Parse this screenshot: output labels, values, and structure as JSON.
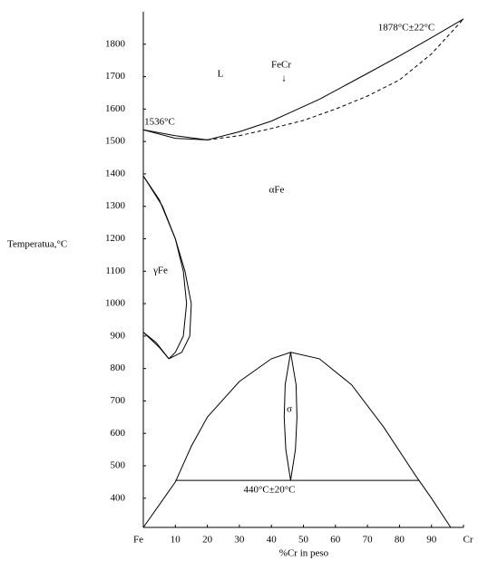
{
  "chart_data": {
    "type": "line",
    "x_label": "%Cr in peso",
    "y_label": "Temperatua,°C",
    "xlim": [
      0,
      100
    ],
    "ylim": [
      310,
      1900
    ],
    "xticks": [
      {
        "value": 0,
        "label": "Fe"
      },
      10,
      20,
      30,
      40,
      50,
      60,
      70,
      80,
      90,
      {
        "value": 100,
        "label": "Cr"
      }
    ],
    "yticks": [
      400,
      500,
      600,
      700,
      800,
      900,
      1000,
      1100,
      1200,
      1300,
      1400,
      1500,
      1600,
      1700,
      1800
    ],
    "color": "#000000",
    "series": [
      {
        "x": [
          0,
          10,
          20,
          30,
          40,
          55,
          70,
          80,
          90,
          100
        ],
        "values": [
          1536,
          1518,
          1505,
          1530,
          1563,
          1630,
          1710,
          1764,
          1820,
          1878
        ],
        "dashed": false
      },
      {
        "x": [
          0,
          10,
          20
        ],
        "values": [
          1536,
          1510,
          1505
        ],
        "dashed": false
      },
      {
        "x": [
          20,
          30,
          40,
          50,
          60,
          70,
          80,
          90,
          100
        ],
        "values": [
          1505,
          1518,
          1540,
          1565,
          1600,
          1640,
          1690,
          1770,
          1878
        ],
        "dashed": true
      },
      {
        "x": [
          0,
          5,
          10,
          13,
          15,
          14.5,
          12,
          8
        ],
        "values": [
          1394,
          1320,
          1200,
          1100,
          1000,
          900,
          850,
          830
        ],
        "dashed": false
      },
      {
        "x": [
          0,
          6,
          10,
          12.5,
          13.5,
          12.5,
          10,
          8
        ],
        "values": [
          1394,
          1300,
          1200,
          1100,
          1000,
          900,
          850,
          830
        ],
        "dashed": false
      },
      {
        "x": [
          0,
          4,
          8
        ],
        "values": [
          912,
          880,
          830
        ],
        "dashed": false
      },
      {
        "x": [
          0,
          5,
          8
        ],
        "values": [
          912,
          865,
          830
        ],
        "dashed": false
      },
      {
        "x": [
          0,
          5,
          10,
          15,
          20,
          30,
          40,
          46,
          55,
          65,
          75,
          85,
          90,
          96
        ],
        "values": [
          310,
          380,
          450,
          560,
          650,
          760,
          830,
          850,
          830,
          750,
          620,
          470,
          400,
          310
        ],
        "dashed": false
      },
      {
        "x": [
          10,
          86
        ],
        "values": [
          455,
          455
        ],
        "dashed": false
      },
      {
        "x": [
          46,
          47.7,
          48,
          47.5,
          46
        ],
        "values": [
          850,
          750,
          650,
          550,
          455
        ],
        "dashed": false
      },
      {
        "x": [
          46,
          44.3,
          44,
          44.5,
          46
        ],
        "values": [
          850,
          750,
          650,
          550,
          455
        ],
        "dashed": false
      }
    ],
    "annotations": [
      "L",
      "FeCr",
      "↓",
      "αFe",
      "γFe",
      "σ",
      "1536°C",
      "1878°C±22°C",
      "440°C±20°C"
    ]
  }
}
